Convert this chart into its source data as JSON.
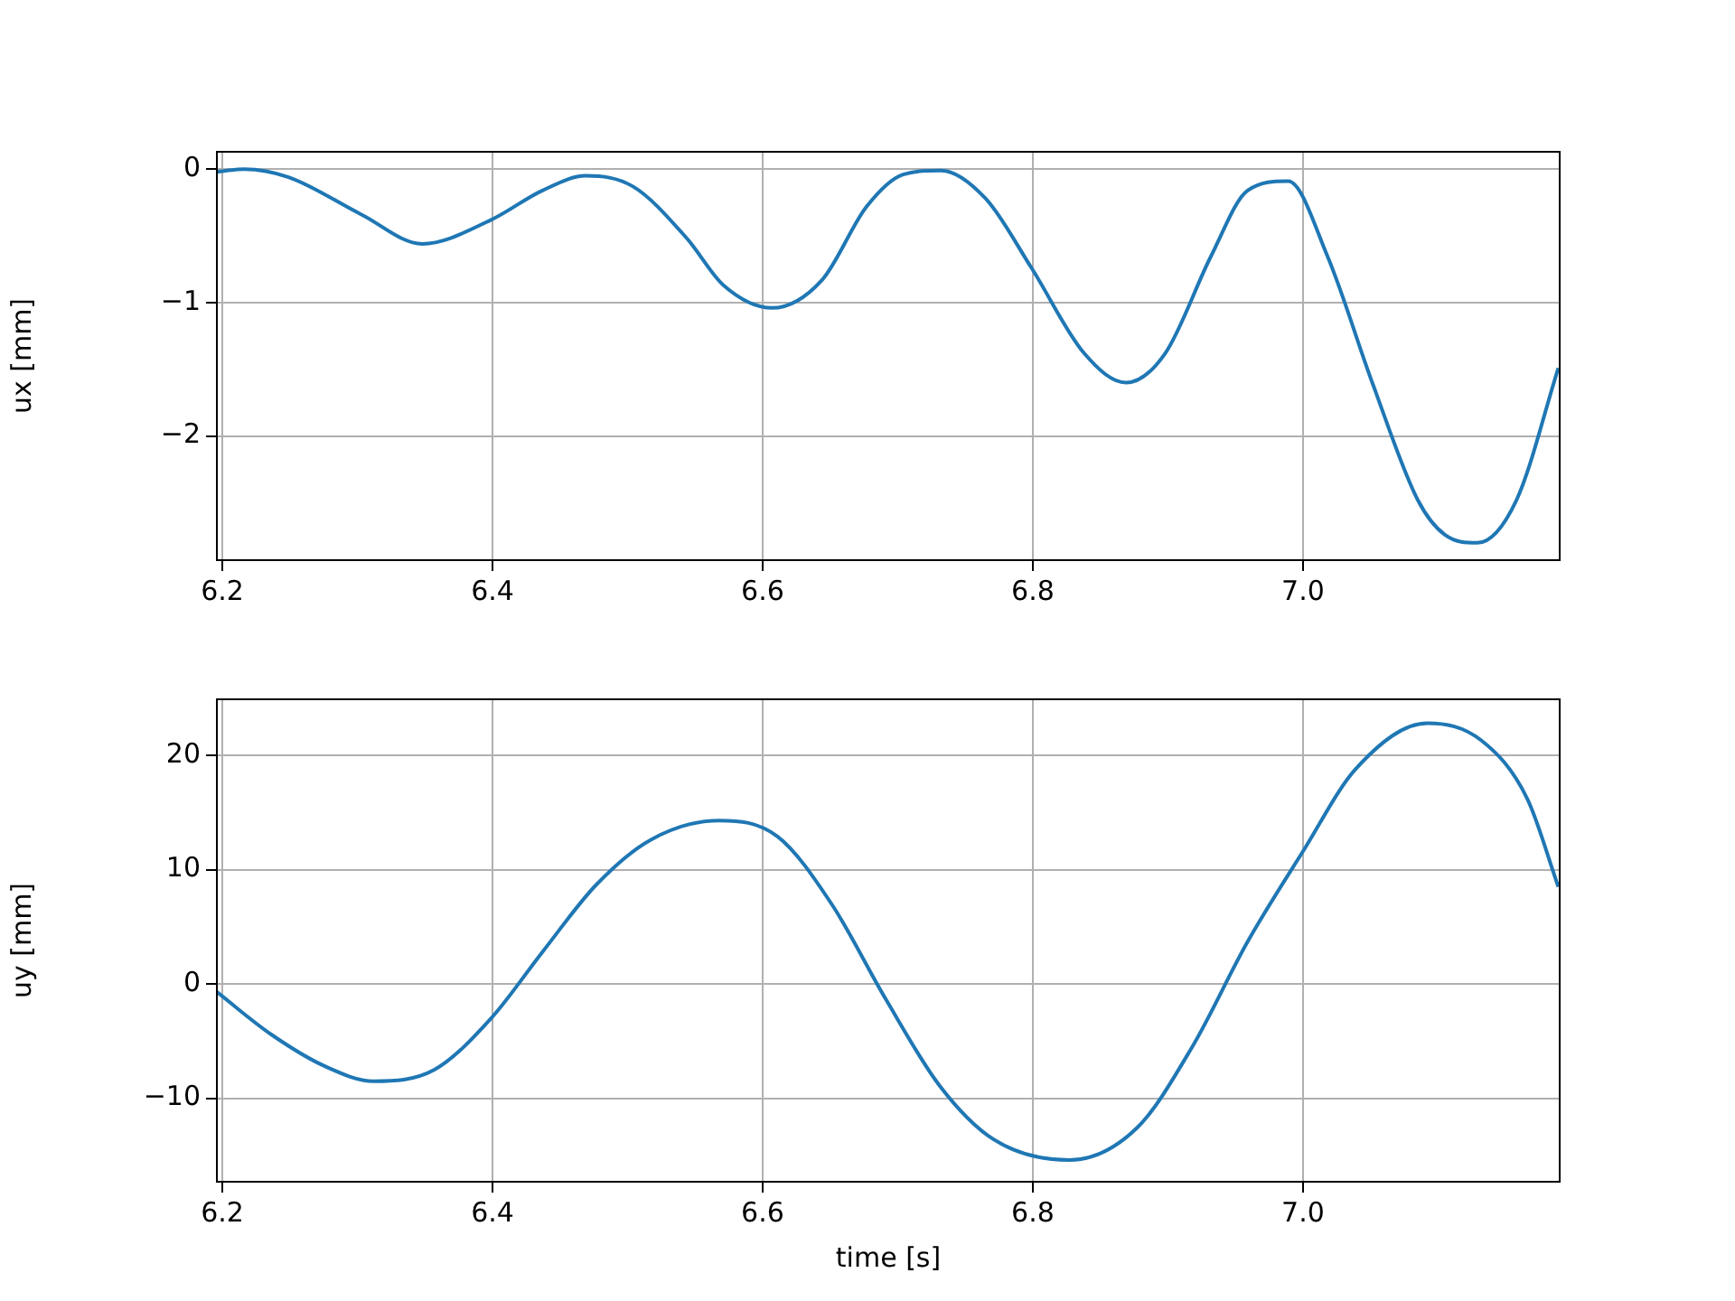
{
  "chart_data": [
    {
      "type": "line",
      "ylabel": "ux [mm]",
      "xlim": [
        6.196,
        7.19
      ],
      "xticks": [
        6.2,
        6.4,
        6.6,
        6.8,
        {
          "value": 7,
          "label": "7.0"
        }
      ],
      "ylim": [
        -2.93,
        0.13
      ],
      "yticks": [
        {
          "value": -2,
          "label": "−2"
        },
        {
          "value": -1,
          "label": "−1"
        },
        0
      ],
      "grid": true,
      "legend": false,
      "series": [
        {
          "color": "#1f77b4",
          "x": [
            6.196,
            6.216,
            6.249,
            6.303,
            6.348,
            6.399,
            6.437,
            6.469,
            6.504,
            6.544,
            6.571,
            6.607,
            6.644,
            6.677,
            6.704,
            6.732,
            6.765,
            6.799,
            6.838,
            6.869,
            6.898,
            6.932,
            6.959,
            6.989,
            7.018,
            7.052,
            7.085,
            7.105,
            7.129,
            7.158,
            7.189
          ],
          "values": [
            -0.02,
            0.0,
            -0.06,
            -0.34,
            -0.56,
            -0.38,
            -0.16,
            -0.05,
            -0.13,
            -0.52,
            -0.87,
            -1.04,
            -0.83,
            -0.28,
            -0.04,
            -0.01,
            -0.22,
            -0.74,
            -1.38,
            -1.6,
            -1.38,
            -0.65,
            -0.16,
            -0.09,
            -0.65,
            -1.62,
            -2.48,
            -2.74,
            -2.8,
            -2.48,
            -1.49
          ]
        }
      ]
    },
    {
      "type": "line",
      "xlabel": "time [s]",
      "ylabel": "uy [mm]",
      "xlim": [
        6.196,
        7.19
      ],
      "xticks": [
        6.2,
        6.4,
        6.6,
        6.8,
        {
          "value": 7,
          "label": "7.0"
        }
      ],
      "ylim": [
        -17.3,
        24.9
      ],
      "yticks": [
        {
          "value": -10,
          "label": "−10"
        },
        0,
        10,
        20
      ],
      "grid": true,
      "legend": false,
      "series": [
        {
          "color": "#1f77b4",
          "x": [
            6.196,
            6.236,
            6.276,
            6.312,
            6.357,
            6.399,
            6.437,
            6.477,
            6.517,
            6.568,
            6.611,
            6.651,
            6.691,
            6.731,
            6.771,
            6.827,
            6.877,
            6.918,
            6.959,
            7.0,
            7.039,
            7.092,
            7.132,
            7.166,
            7.189
          ],
          "values": [
            -0.7,
            -4.4,
            -7.2,
            -8.5,
            -7.5,
            -3.0,
            2.8,
            8.7,
            12.6,
            14.3,
            12.9,
            7.0,
            -1.3,
            -8.9,
            -13.6,
            -15.4,
            -12.6,
            -5.5,
            3.7,
            11.6,
            18.8,
            22.8,
            21.3,
            16.2,
            8.5
          ]
        }
      ]
    }
  ]
}
